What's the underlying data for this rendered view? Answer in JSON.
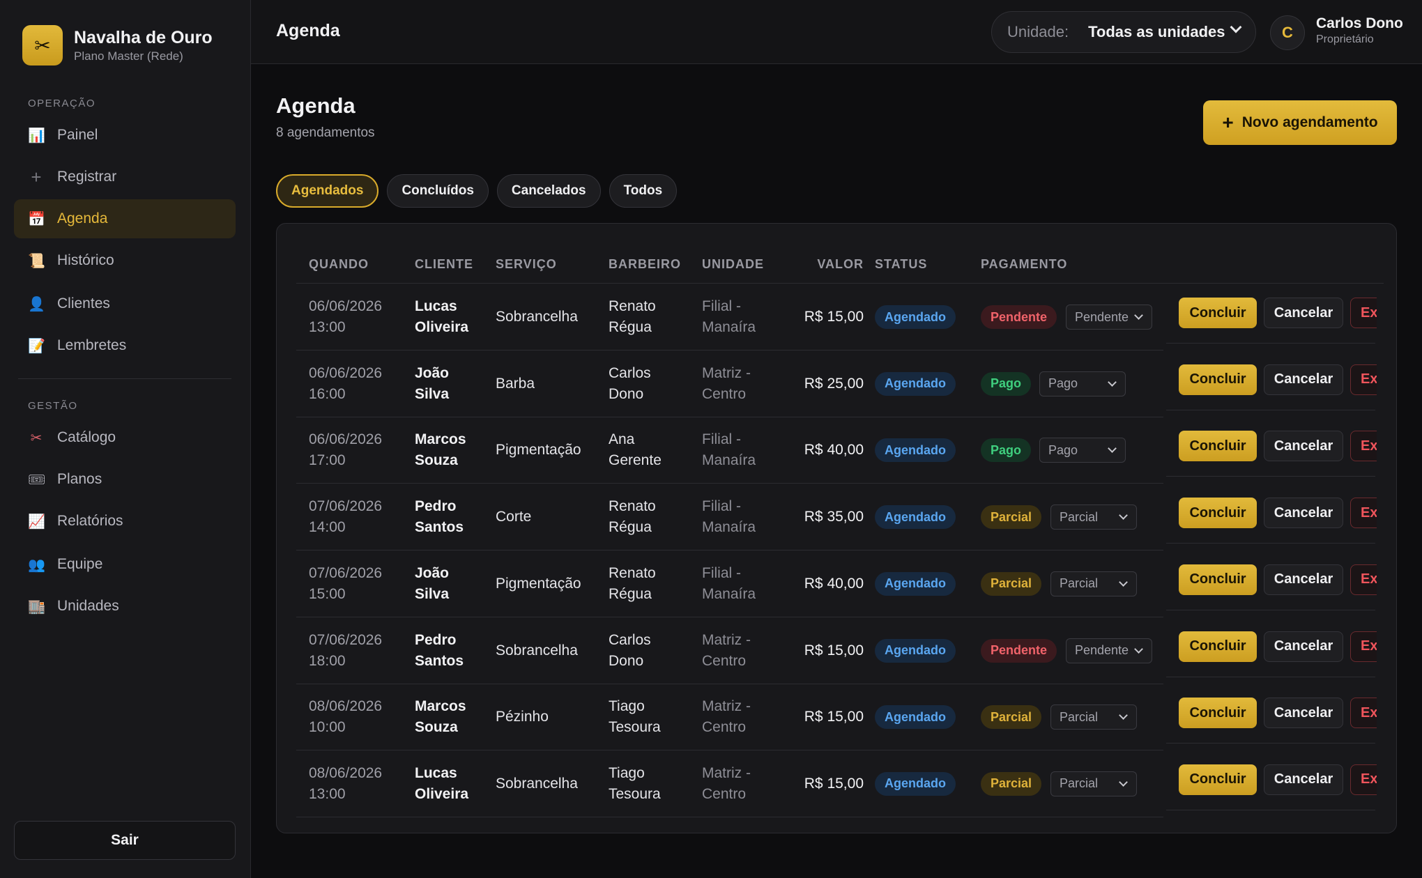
{
  "brand": {
    "name": "Navalha de Ouro",
    "plan": "Plano Master (Rede)",
    "logo_icon": "scissors-icon"
  },
  "sidebar": {
    "section_operacao": "OPERAÇÃO",
    "section_gestao": "GESTÃO",
    "items": [
      {
        "label": "Painel",
        "icon": "📊"
      },
      {
        "label": "Registrar",
        "icon": "+"
      },
      {
        "label": "Agenda",
        "icon": "📅"
      },
      {
        "label": "Histórico",
        "icon": "📜"
      },
      {
        "label": "Clientes",
        "icon": "👤"
      },
      {
        "label": "Lembretes",
        "icon": "📝"
      },
      {
        "label": "Catálogo",
        "icon": "✂"
      },
      {
        "label": "Planos",
        "icon": "🎟"
      },
      {
        "label": "Relatórios",
        "icon": "📈"
      },
      {
        "label": "Equipe",
        "icon": "👥"
      },
      {
        "label": "Unidades",
        "icon": "🏬"
      }
    ],
    "logout": "Sair"
  },
  "header": {
    "title": "Agenda",
    "unit_label": "Unidade:",
    "unit_value": "Todas as unidades",
    "user_initial": "C",
    "user_name": "Carlos Dono",
    "user_role": "Proprietário"
  },
  "page": {
    "title": "Agenda",
    "subtitle": "8 agendamentos",
    "new_button": "Novo agendamento",
    "tabs": [
      "Agendados",
      "Concluídos",
      "Cancelados",
      "Todos"
    ]
  },
  "table": {
    "columns": [
      "QUANDO",
      "CLIENTE",
      "SERVIÇO",
      "BARBEIRO",
      "UNIDADE",
      "VALOR",
      "STATUS",
      "PAGAMENTO"
    ],
    "actions": {
      "conclude": "Concluir",
      "cancel": "Cancelar",
      "extra": "Ex"
    },
    "rows": [
      {
        "date": "06/06/2026",
        "time": "13:00",
        "client1": "Lucas",
        "client2": "Oliveira",
        "service": "Sobrancelha",
        "barber1": "Renato",
        "barber2": "Régua",
        "unit1": "Filial -",
        "unit2": "Manaíra",
        "value": "R$ 15,00",
        "status": "Agendado",
        "payment": "Pendente",
        "payment_select": "Pendente"
      },
      {
        "date": "06/06/2026",
        "time": "16:00",
        "client1": "João",
        "client2": "Silva",
        "service": "Barba",
        "barber1": "Carlos",
        "barber2": "Dono",
        "unit1": "Matriz -",
        "unit2": "Centro",
        "value": "R$ 25,00",
        "status": "Agendado",
        "payment": "Pago",
        "payment_select": "Pago"
      },
      {
        "date": "06/06/2026",
        "time": "17:00",
        "client1": "Marcos",
        "client2": "Souza",
        "service": "Pigmentação",
        "barber1": "Ana",
        "barber2": "Gerente",
        "unit1": "Filial -",
        "unit2": "Manaíra",
        "value": "R$ 40,00",
        "status": "Agendado",
        "payment": "Pago",
        "payment_select": "Pago"
      },
      {
        "date": "07/06/2026",
        "time": "14:00",
        "client1": "Pedro",
        "client2": "Santos",
        "service": "Corte",
        "barber1": "Renato",
        "barber2": "Régua",
        "unit1": "Filial -",
        "unit2": "Manaíra",
        "value": "R$ 35,00",
        "status": "Agendado",
        "payment": "Parcial",
        "payment_select": "Parcial"
      },
      {
        "date": "07/06/2026",
        "time": "15:00",
        "client1": "João",
        "client2": "Silva",
        "service": "Pigmentação",
        "barber1": "Renato",
        "barber2": "Régua",
        "unit1": "Filial -",
        "unit2": "Manaíra",
        "value": "R$ 40,00",
        "status": "Agendado",
        "payment": "Parcial",
        "payment_select": "Parcial"
      },
      {
        "date": "07/06/2026",
        "time": "18:00",
        "client1": "Pedro",
        "client2": "Santos",
        "service": "Sobrancelha",
        "barber1": "Carlos",
        "barber2": "Dono",
        "unit1": "Matriz -",
        "unit2": "Centro",
        "value": "R$ 15,00",
        "status": "Agendado",
        "payment": "Pendente",
        "payment_select": "Pendente"
      },
      {
        "date": "08/06/2026",
        "time": "10:00",
        "client1": "Marcos",
        "client2": "Souza",
        "service": "Pézinho",
        "barber1": "Tiago",
        "barber2": "Tesoura",
        "unit1": "Matriz -",
        "unit2": "Centro",
        "value": "R$ 15,00",
        "status": "Agendado",
        "payment": "Parcial",
        "payment_select": "Parcial"
      },
      {
        "date": "08/06/2026",
        "time": "13:00",
        "client1": "Lucas",
        "client2": "Oliveira",
        "service": "Sobrancelha",
        "barber1": "Tiago",
        "barber2": "Tesoura",
        "unit1": "Matriz -",
        "unit2": "Centro",
        "value": "R$ 15,00",
        "status": "Agendado",
        "payment": "Parcial",
        "payment_select": "Parcial"
      }
    ]
  },
  "colors": {
    "accent": "#e2b93b",
    "status_blue": "#5aa6f0",
    "pay_red": "#f0636a",
    "pay_green": "#3fcf7e",
    "pay_yellow": "#e0b23a"
  }
}
